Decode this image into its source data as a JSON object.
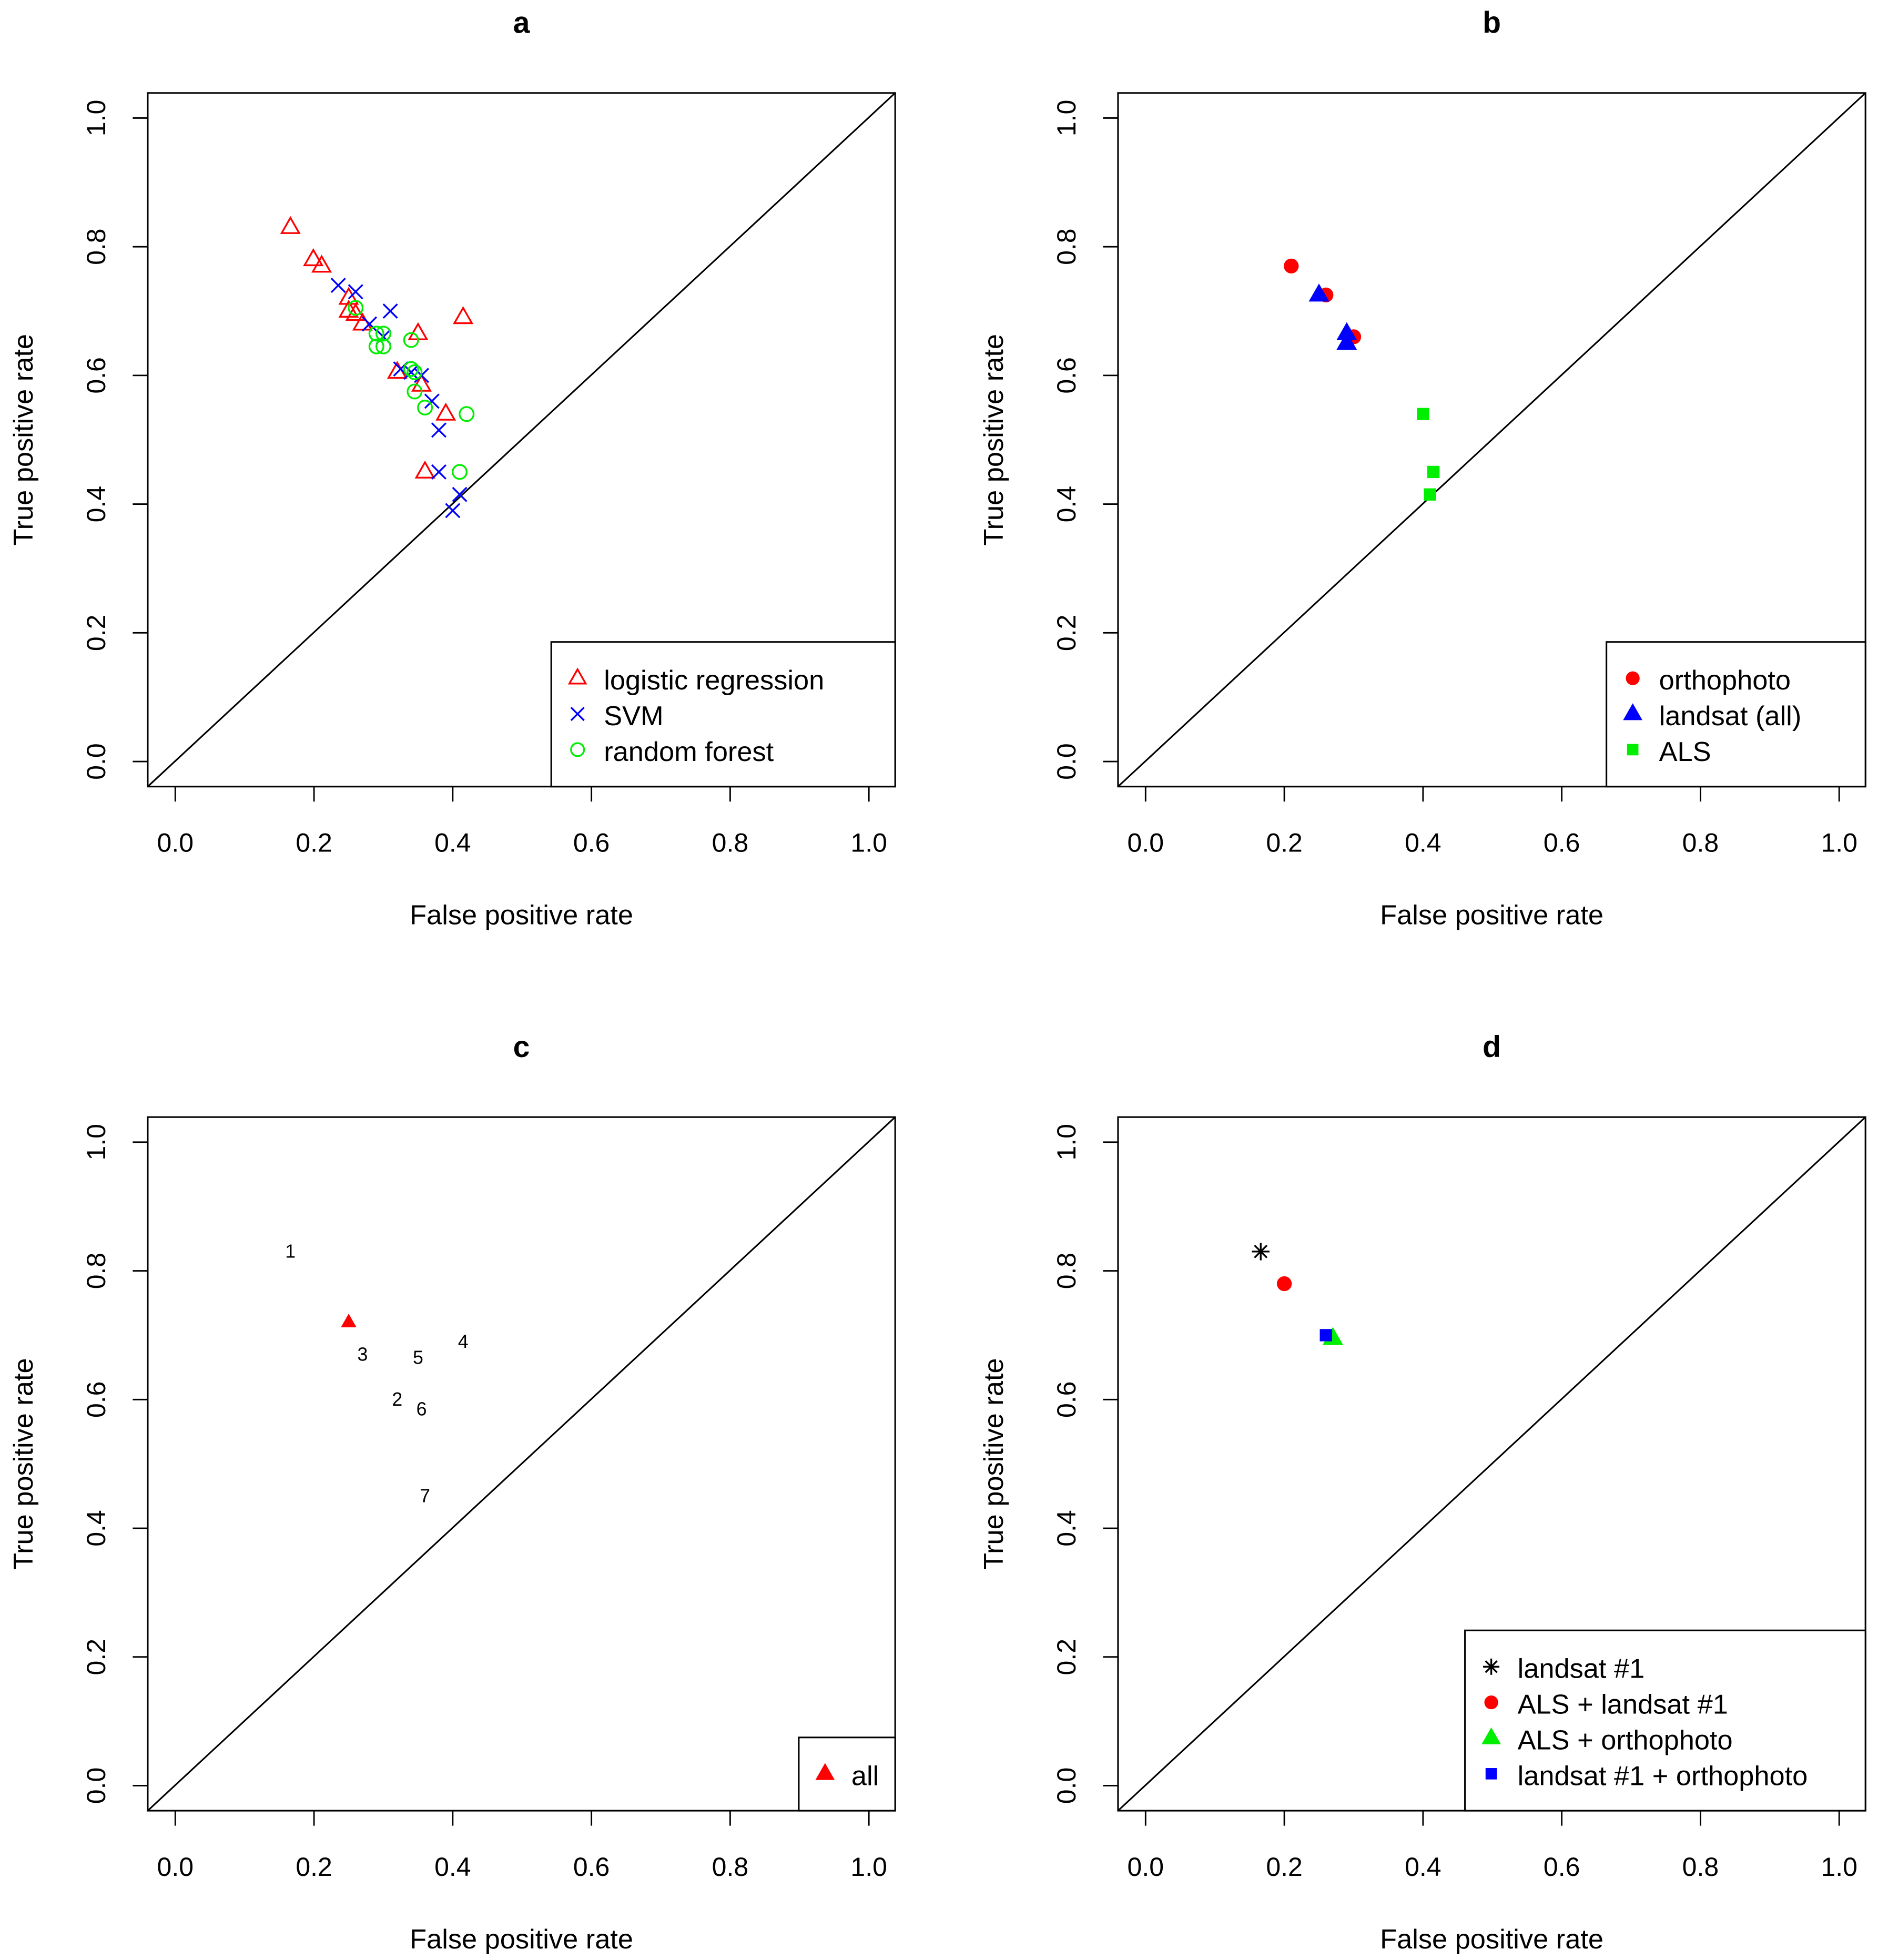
{
  "chart_data": [
    {
      "type": "scatter",
      "title": "a",
      "xlabel": "False positive rate",
      "ylabel": "True positive rate",
      "xlim": [
        0,
        1
      ],
      "ylim": [
        0,
        1
      ],
      "xticks": [
        "0.0",
        "0.2",
        "0.4",
        "0.6",
        "0.8",
        "1.0"
      ],
      "yticks": [
        "0.0",
        "0.2",
        "0.4",
        "0.6",
        "0.8",
        "1.0"
      ],
      "diagonal": true,
      "legend_position": "bottom-right",
      "series": [
        {
          "name": "logistic regression",
          "marker": "triangle-open",
          "color": "#ff0000",
          "points": [
            [
              0.166,
              0.83
            ],
            [
              0.199,
              0.78
            ],
            [
              0.211,
              0.77
            ],
            [
              0.25,
              0.72
            ],
            [
              0.25,
              0.7
            ],
            [
              0.26,
              0.695
            ],
            [
              0.27,
              0.68
            ],
            [
              0.32,
              0.605
            ],
            [
              0.35,
              0.665
            ],
            [
              0.355,
              0.585
            ],
            [
              0.39,
              0.54
            ],
            [
              0.415,
              0.69
            ],
            [
              0.36,
              0.45
            ]
          ]
        },
        {
          "name": "SVM",
          "marker": "x",
          "color": "#0000ff",
          "points": [
            [
              0.235,
              0.74
            ],
            [
              0.26,
              0.73
            ],
            [
              0.31,
              0.7
            ],
            [
              0.28,
              0.68
            ],
            [
              0.3,
              0.66
            ],
            [
              0.325,
              0.61
            ],
            [
              0.34,
              0.605
            ],
            [
              0.355,
              0.6
            ],
            [
              0.37,
              0.56
            ],
            [
              0.38,
              0.515
            ],
            [
              0.38,
              0.45
            ],
            [
              0.41,
              0.415
            ],
            [
              0.4,
              0.39
            ]
          ]
        },
        {
          "name": "random forest",
          "marker": "circle-open",
          "color": "#00ee00",
          "points": [
            [
              0.26,
              0.705
            ],
            [
              0.29,
              0.665
            ],
            [
              0.3,
              0.665
            ],
            [
              0.29,
              0.645
            ],
            [
              0.3,
              0.645
            ],
            [
              0.34,
              0.655
            ],
            [
              0.34,
              0.61
            ],
            [
              0.345,
              0.605
            ],
            [
              0.345,
              0.575
            ],
            [
              0.36,
              0.55
            ],
            [
              0.42,
              0.54
            ],
            [
              0.41,
              0.45
            ]
          ]
        }
      ]
    },
    {
      "type": "scatter",
      "title": "b",
      "xlabel": "False positive rate",
      "ylabel": "True positive rate",
      "xlim": [
        0,
        1
      ],
      "ylim": [
        0,
        1
      ],
      "xticks": [
        "0.0",
        "0.2",
        "0.4",
        "0.6",
        "0.8",
        "1.0"
      ],
      "yticks": [
        "0.0",
        "0.2",
        "0.4",
        "0.6",
        "0.8",
        "1.0"
      ],
      "diagonal": true,
      "legend_position": "bottom-right",
      "series": [
        {
          "name": "orthophoto",
          "marker": "circle",
          "color": "#ff0000",
          "points": [
            [
              0.21,
              0.77
            ],
            [
              0.26,
              0.725
            ],
            [
              0.3,
              0.66
            ]
          ]
        },
        {
          "name": "landsat (all)",
          "marker": "triangle",
          "color": "#0000ff",
          "points": [
            [
              0.25,
              0.725
            ],
            [
              0.29,
              0.665
            ],
            [
              0.29,
              0.65
            ]
          ]
        },
        {
          "name": "ALS",
          "marker": "square",
          "color": "#00ee00",
          "points": [
            [
              0.4,
              0.54
            ],
            [
              0.415,
              0.45
            ],
            [
              0.41,
              0.415
            ]
          ]
        }
      ]
    },
    {
      "type": "scatter",
      "title": "c",
      "xlabel": "False positive rate",
      "ylabel": "True positive rate",
      "xlim": [
        0,
        1
      ],
      "ylim": [
        0,
        1
      ],
      "xticks": [
        "0.0",
        "0.2",
        "0.4",
        "0.6",
        "0.8",
        "1.0"
      ],
      "yticks": [
        "0.0",
        "0.2",
        "0.4",
        "0.6",
        "0.8",
        "1.0"
      ],
      "diagonal": true,
      "legend_position": "bottom-right",
      "labels": [
        {
          "text": "1",
          "x": 0.166,
          "y": 0.83
        },
        {
          "text": "2",
          "x": 0.32,
          "y": 0.6
        },
        {
          "text": "3",
          "x": 0.27,
          "y": 0.67
        },
        {
          "text": "4",
          "x": 0.415,
          "y": 0.69
        },
        {
          "text": "5",
          "x": 0.35,
          "y": 0.665
        },
        {
          "text": "6",
          "x": 0.355,
          "y": 0.585
        },
        {
          "text": "7",
          "x": 0.36,
          "y": 0.45
        }
      ],
      "series": [
        {
          "name": "all",
          "marker": "triangle",
          "color": "#ff0000",
          "points": [
            [
              0.25,
              0.72
            ]
          ]
        }
      ]
    },
    {
      "type": "scatter",
      "title": "d",
      "xlabel": "False positive rate",
      "ylabel": "True positive rate",
      "xlim": [
        0,
        1
      ],
      "ylim": [
        0,
        1
      ],
      "xticks": [
        "0.0",
        "0.2",
        "0.4",
        "0.6",
        "0.8",
        "1.0"
      ],
      "yticks": [
        "0.0",
        "0.2",
        "0.4",
        "0.6",
        "0.8",
        "1.0"
      ],
      "diagonal": true,
      "legend_position": "bottom-right",
      "series": [
        {
          "name": "landsat #1",
          "marker": "star",
          "color": "#000000",
          "points": [
            [
              0.166,
              0.83
            ]
          ]
        },
        {
          "name": "ALS + landsat #1",
          "marker": "circle",
          "color": "#ff0000",
          "points": [
            [
              0.2,
              0.78
            ]
          ]
        },
        {
          "name": "ALS + orthophoto",
          "marker": "triangle",
          "color": "#00ee00",
          "points": [
            [
              0.27,
              0.695
            ]
          ]
        },
        {
          "name": "landsat #1 + orthophoto",
          "marker": "square",
          "color": "#0000ff",
          "points": [
            [
              0.26,
              0.7
            ]
          ]
        }
      ]
    }
  ]
}
